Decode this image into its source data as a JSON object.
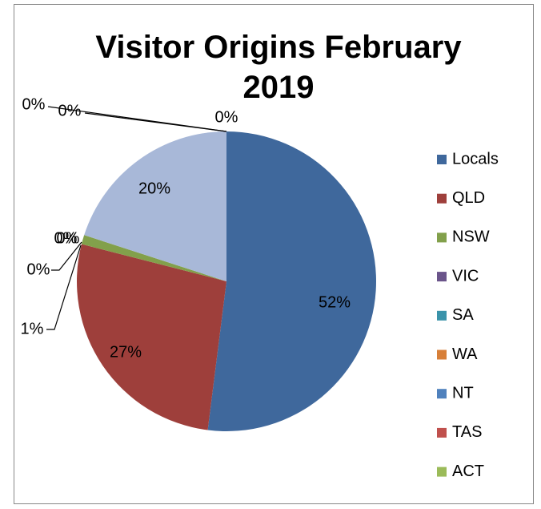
{
  "chart_data": {
    "type": "pie",
    "title": "Visitor Origins February 2019",
    "categories": [
      "Locals",
      "QLD",
      "NSW",
      "VIC",
      "SA",
      "WA",
      "NT",
      "TAS",
      "ACT",
      null
    ],
    "values": [
      52,
      27,
      1,
      0,
      0,
      0,
      0,
      0,
      0,
      20
    ],
    "value_labels": [
      "52%",
      "27%",
      "1%",
      "0%",
      "0%",
      "0%",
      "0%",
      "0%",
      "0%",
      "20%"
    ],
    "colors": [
      "#3F689C",
      "#9E3F3B",
      "#82A04B",
      "#6A548A",
      "#3A93AA",
      "#D77F38",
      "#4F81BD",
      "#C0504D",
      "#9BBB59",
      "#A8B8D8"
    ],
    "legend": "right"
  }
}
